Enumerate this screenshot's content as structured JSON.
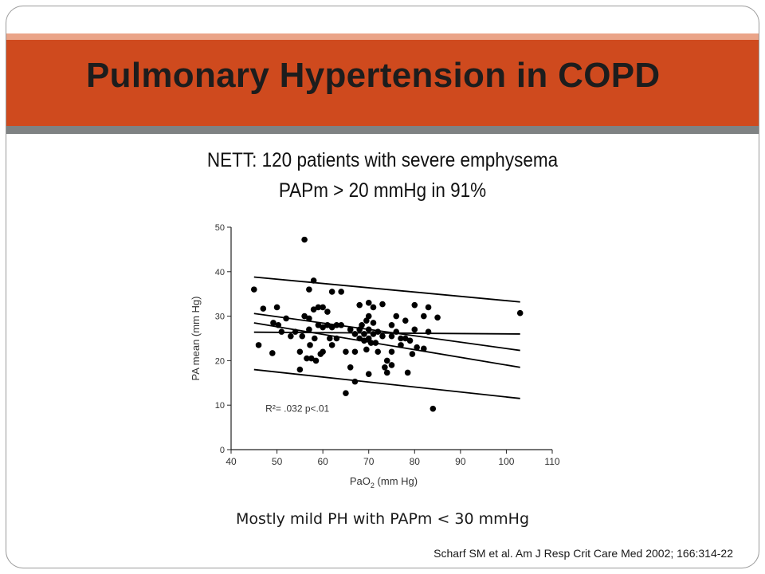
{
  "slide": {
    "title": "Pulmonary Hypertension in COPD",
    "subtitle_line1": "NETT: 120 patients with severe emphysema",
    "subtitle_line2": "PAPm > 20 mmHg in 91%",
    "caption": "Mostly mild PH with PAPm < 30 mmHg",
    "citation": "Scharf SM et al. Am J Resp Crit Care Med 2002; 166:314-22",
    "colors": {
      "title_band": "#cf4a1e",
      "title_band_top": "#eaa488",
      "title_band_bottom": "#7f8283"
    }
  },
  "chart_data": {
    "type": "scatter",
    "xlabel_main": "PaO",
    "xlabel_sub": "2",
    "xlabel_unit": " (mm Hg)",
    "ylabel": "PA mean (mm Hg)",
    "xlim": [
      40,
      110
    ],
    "ylim": [
      0,
      50
    ],
    "x_ticks": [
      40,
      50,
      60,
      70,
      80,
      90,
      100,
      110
    ],
    "y_ticks": [
      0,
      10,
      20,
      30,
      40,
      50
    ],
    "grid": false,
    "annotation": "R²= .032   p<.01",
    "points": [
      [
        45,
        36
      ],
      [
        46,
        23.5
      ],
      [
        47,
        31.7
      ],
      [
        49,
        21.7
      ],
      [
        49.2,
        28.5
      ],
      [
        50,
        32
      ],
      [
        50.3,
        28
      ],
      [
        51,
        26.5
      ],
      [
        52,
        29.5
      ],
      [
        53,
        25.5
      ],
      [
        54,
        26.5
      ],
      [
        55,
        22
      ],
      [
        55,
        18
      ],
      [
        55.5,
        25.5
      ],
      [
        56,
        47.2
      ],
      [
        56,
        30
      ],
      [
        56.5,
        20.5
      ],
      [
        57,
        36
      ],
      [
        57,
        29.5
      ],
      [
        57,
        27
      ],
      [
        57.2,
        23.5
      ],
      [
        57.5,
        20.5
      ],
      [
        58,
        38
      ],
      [
        58,
        31.5
      ],
      [
        58.2,
        25
      ],
      [
        58.5,
        20
      ],
      [
        59,
        32
      ],
      [
        59,
        28
      ],
      [
        59.5,
        21.5
      ],
      [
        60,
        32
      ],
      [
        60,
        27.5
      ],
      [
        60,
        22
      ],
      [
        61,
        31
      ],
      [
        61,
        28
      ],
      [
        61.5,
        25
      ],
      [
        62,
        35.5
      ],
      [
        62,
        27.5
      ],
      [
        62,
        23.5
      ],
      [
        63,
        28
      ],
      [
        63,
        25
      ],
      [
        64,
        35.5
      ],
      [
        64,
        28
      ],
      [
        65,
        22
      ],
      [
        65,
        12.7
      ],
      [
        66,
        27
      ],
      [
        66,
        18.5
      ],
      [
        67,
        26
      ],
      [
        67,
        22
      ],
      [
        67,
        15.3
      ],
      [
        68,
        32.5
      ],
      [
        68,
        27
      ],
      [
        68,
        25
      ],
      [
        68.5,
        28
      ],
      [
        69,
        26
      ],
      [
        69,
        24.5
      ],
      [
        69.5,
        29
      ],
      [
        69.5,
        22.5
      ],
      [
        70,
        33
      ],
      [
        70,
        30
      ],
      [
        70,
        27
      ],
      [
        70,
        25
      ],
      [
        70,
        17
      ],
      [
        70.5,
        24
      ],
      [
        71,
        32
      ],
      [
        71,
        28.5
      ],
      [
        71,
        26
      ],
      [
        71.5,
        24
      ],
      [
        72,
        26.5
      ],
      [
        72,
        22
      ],
      [
        73,
        32.7
      ],
      [
        73,
        25.5
      ],
      [
        73.5,
        18.5
      ],
      [
        74,
        20
      ],
      [
        74,
        17.3
      ],
      [
        75,
        28
      ],
      [
        75,
        25.5
      ],
      [
        75,
        22
      ],
      [
        75,
        19
      ],
      [
        76,
        30
      ],
      [
        76,
        26.5
      ],
      [
        77,
        25
      ],
      [
        77,
        23.5
      ],
      [
        78,
        29
      ],
      [
        78,
        25
      ],
      [
        78.5,
        17.3
      ],
      [
        79,
        24.5
      ],
      [
        79.5,
        21.5
      ],
      [
        80,
        32.5
      ],
      [
        80,
        27
      ],
      [
        80.5,
        23
      ],
      [
        82,
        30
      ],
      [
        82,
        22.7
      ],
      [
        83,
        32
      ],
      [
        83,
        26.5
      ],
      [
        84,
        9.2
      ],
      [
        85,
        29.7
      ],
      [
        103,
        30.7
      ]
    ],
    "lines": [
      {
        "name": "upper-bound",
        "x": [
          45,
          103
        ],
        "y": [
          38.8,
          33.2
        ]
      },
      {
        "name": "ci-upper",
        "x": [
          45,
          103
        ],
        "y": [
          30.6,
          22.3
        ]
      },
      {
        "name": "regression",
        "x": [
          45,
          103
        ],
        "y": [
          28.5,
          18.5
        ]
      },
      {
        "name": "ci-lower",
        "x": [
          45,
          103
        ],
        "y": [
          26.4,
          26
        ]
      },
      {
        "name": "lower-bound",
        "x": [
          45,
          103
        ],
        "y": [
          18,
          11.5
        ]
      }
    ]
  }
}
